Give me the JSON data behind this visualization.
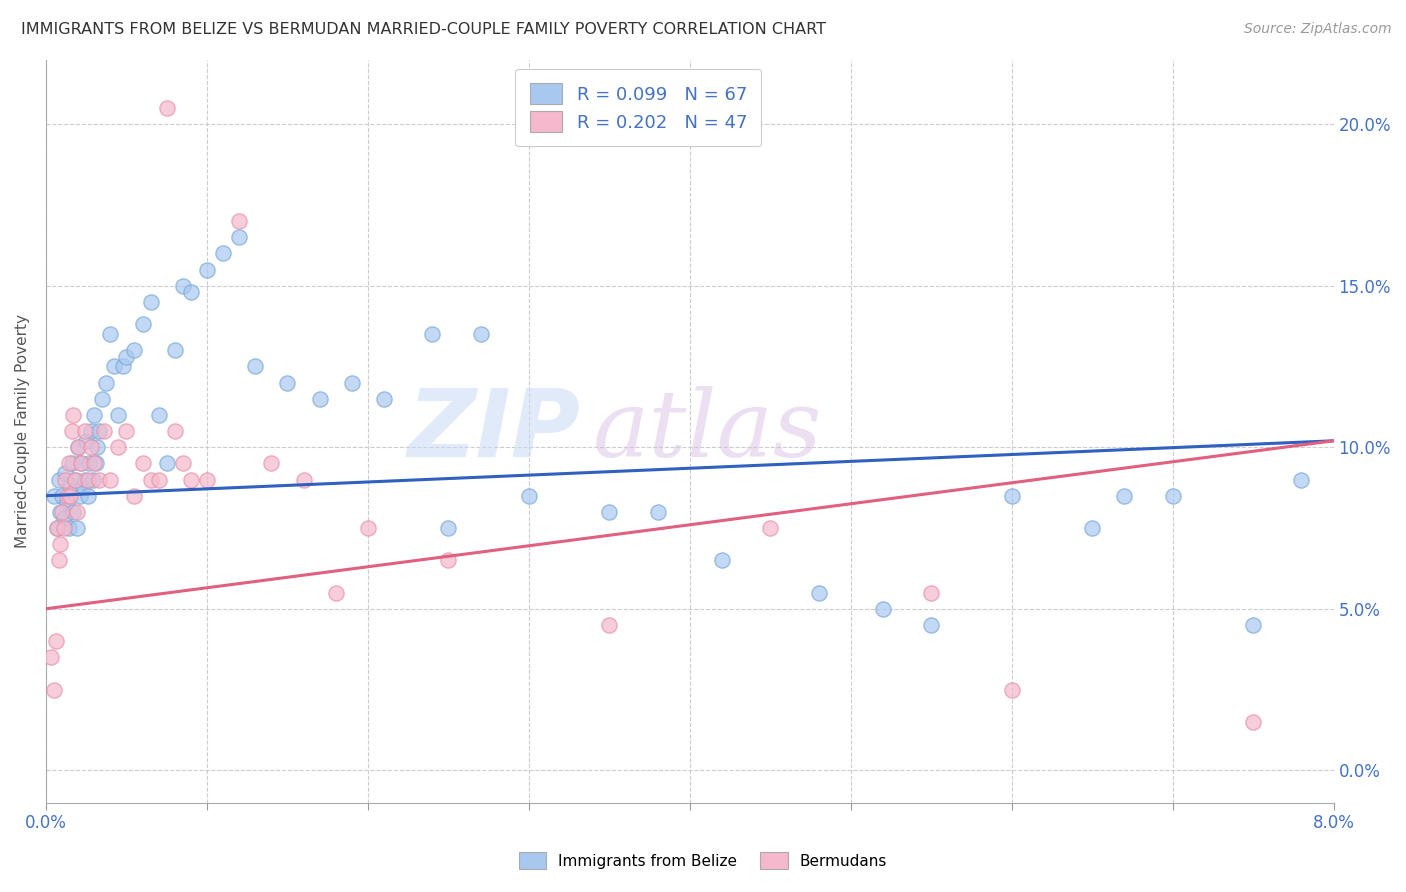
{
  "title": "IMMIGRANTS FROM BELIZE VS BERMUDAN MARRIED-COUPLE FAMILY POVERTY CORRELATION CHART",
  "source": "Source: ZipAtlas.com",
  "ylabel": "Married-Couple Family Poverty",
  "xlim": [
    0.0,
    8.0
  ],
  "ylim": [
    -1.0,
    22.0
  ],
  "yticks": [
    0.0,
    5.0,
    10.0,
    15.0,
    20.0
  ],
  "xtick_positions": [
    0.0,
    1.0,
    2.0,
    3.0,
    4.0,
    5.0,
    6.0,
    7.0,
    8.0
  ],
  "legend_r1": "R = 0.099   N = 67",
  "legend_r2": "R = 0.202   N = 47",
  "belize_color": "#a8c8f0",
  "bermuda_color": "#f5b8cc",
  "belize_edge_color": "#7aaad8",
  "bermuda_edge_color": "#e890a8",
  "belize_line_color": "#3060c0",
  "bermuda_line_color": "#e06080",
  "watermark_top": "ZIP",
  "watermark_bot": "atlas",
  "belize_scatter_x": [
    0.05,
    0.07,
    0.08,
    0.09,
    0.1,
    0.11,
    0.12,
    0.13,
    0.14,
    0.15,
    0.16,
    0.17,
    0.18,
    0.19,
    0.2,
    0.21,
    0.22,
    0.23,
    0.24,
    0.25,
    0.26,
    0.27,
    0.28,
    0.29,
    0.3,
    0.31,
    0.32,
    0.33,
    0.35,
    0.37,
    0.4,
    0.42,
    0.45,
    0.48,
    0.5,
    0.55,
    0.6,
    0.65,
    0.7,
    0.75,
    0.8,
    0.85,
    0.9,
    1.0,
    1.1,
    1.2,
    1.3,
    1.5,
    1.7,
    1.9,
    2.1,
    2.4,
    2.5,
    2.7,
    3.0,
    3.5,
    3.8,
    4.2,
    4.8,
    5.2,
    5.5,
    6.0,
    6.5,
    7.0,
    7.5,
    7.8,
    6.7
  ],
  "belize_scatter_y": [
    8.5,
    7.5,
    9.0,
    8.0,
    8.5,
    7.8,
    9.2,
    8.3,
    7.5,
    8.8,
    9.5,
    8.0,
    9.0,
    7.5,
    10.0,
    8.5,
    9.5,
    8.8,
    9.0,
    10.2,
    8.5,
    9.5,
    10.5,
    9.0,
    11.0,
    9.5,
    10.0,
    10.5,
    11.5,
    12.0,
    13.5,
    12.5,
    11.0,
    12.5,
    12.8,
    13.0,
    13.8,
    14.5,
    11.0,
    9.5,
    13.0,
    15.0,
    14.8,
    15.5,
    16.0,
    16.5,
    12.5,
    12.0,
    11.5,
    12.0,
    11.5,
    13.5,
    7.5,
    13.5,
    8.5,
    8.0,
    8.0,
    6.5,
    5.5,
    5.0,
    4.5,
    8.5,
    7.5,
    8.5,
    4.5,
    9.0,
    8.5
  ],
  "bermuda_scatter_x": [
    0.03,
    0.05,
    0.06,
    0.07,
    0.08,
    0.09,
    0.1,
    0.11,
    0.12,
    0.13,
    0.14,
    0.15,
    0.16,
    0.17,
    0.18,
    0.19,
    0.2,
    0.22,
    0.24,
    0.26,
    0.28,
    0.3,
    0.33,
    0.36,
    0.4,
    0.45,
    0.5,
    0.55,
    0.6,
    0.65,
    0.7,
    0.75,
    0.8,
    0.85,
    0.9,
    1.0,
    1.2,
    1.4,
    1.6,
    1.8,
    2.0,
    2.5,
    3.5,
    4.5,
    5.5,
    6.0,
    7.5
  ],
  "bermuda_scatter_y": [
    3.5,
    2.5,
    4.0,
    7.5,
    6.5,
    7.0,
    8.0,
    7.5,
    9.0,
    8.5,
    9.5,
    8.5,
    10.5,
    11.0,
    9.0,
    8.0,
    10.0,
    9.5,
    10.5,
    9.0,
    10.0,
    9.5,
    9.0,
    10.5,
    9.0,
    10.0,
    10.5,
    8.5,
    9.5,
    9.0,
    9.0,
    20.5,
    10.5,
    9.5,
    9.0,
    9.0,
    17.0,
    9.5,
    9.0,
    5.5,
    7.5,
    6.5,
    4.5,
    7.5,
    5.5,
    2.5,
    1.5
  ],
  "belize_trend_x": [
    0.0,
    8.0
  ],
  "belize_trend_y": [
    8.5,
    10.2
  ],
  "bermuda_trend_x": [
    0.0,
    8.0
  ],
  "bermuda_trend_y": [
    5.0,
    10.2
  ]
}
